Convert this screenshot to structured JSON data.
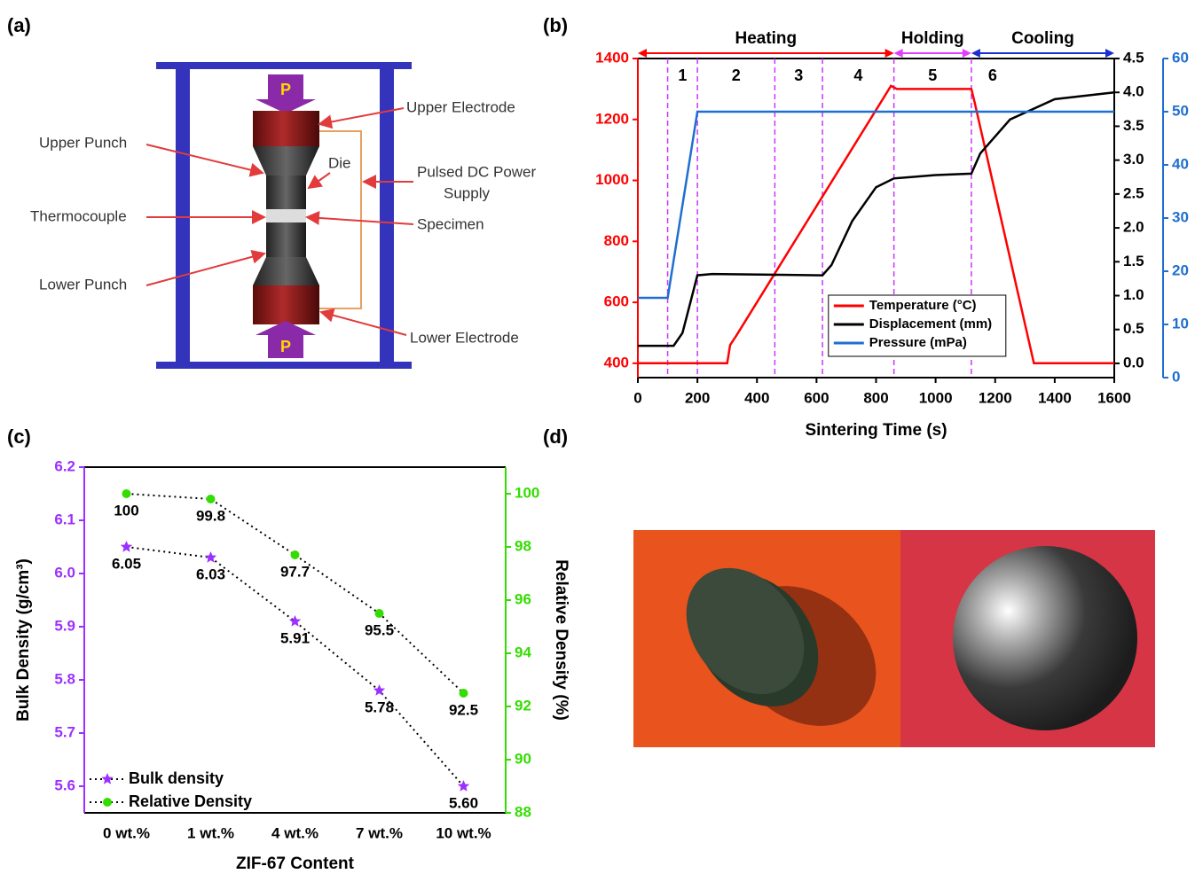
{
  "panel_labels": [
    "(a)",
    "(b)",
    "(c)",
    "(d)"
  ],
  "diagram": {
    "force": [
      "P",
      "P"
    ],
    "labels": {
      "upper_electrode": "Upper Electrode",
      "upper_punch": "Upper Punch",
      "die": "Die",
      "power_supply": [
        "Pulsed DC Power",
        "Supply"
      ],
      "thermocouple": "Thermocouple",
      "specimen": "Specimen",
      "lower_punch": "Lower Punch",
      "lower_electrode": "Lower Electrode"
    }
  },
  "chart_data": [
    {
      "type": "line",
      "xlabel": "Sintering Time (s)",
      "xlim": [
        0,
        1600
      ],
      "xticks": [
        0,
        200,
        400,
        600,
        800,
        1000,
        1200,
        1400,
        1600
      ],
      "ylim": [
        353,
        1400
      ],
      "yticks": [
        400,
        600,
        800,
        1000,
        1200,
        1400
      ],
      "y2lim": [
        -0.21,
        4.5
      ],
      "y2ticks": [
        {
          "value": 0,
          "label": "0.0"
        },
        0.5,
        {
          "value": 1,
          "label": "1.0"
        },
        1.5,
        {
          "value": 2,
          "label": "2.0"
        },
        2.5,
        {
          "value": 3,
          "label": "3.0"
        },
        3.5,
        {
          "value": 4,
          "label": "4.0"
        },
        4.5
      ],
      "y3lim": [
        0,
        60
      ],
      "y3ticks": [
        0,
        10,
        20,
        30,
        40,
        50,
        60
      ],
      "axis_colors": {
        "y": "#ff0000",
        "y2": "#000000",
        "y3": "#1f6fd0"
      },
      "legend": "lower center",
      "series": [
        {
          "name": "Temperature (°C)",
          "color": "#ff0000",
          "x": [
            0,
            300,
            310,
            330,
            850,
            870,
            1120,
            1130,
            1330,
            1600
          ],
          "values": [
            400,
            400,
            460,
            490,
            1310,
            1300,
            1300,
            1260,
            400,
            400
          ]
        },
        {
          "name": "Displacement (mm)",
          "color": "#000000",
          "axis": "y2",
          "x": [
            0,
            120,
            150,
            200,
            250,
            620,
            650,
            720,
            800,
            860,
            1000,
            1120,
            1150,
            1250,
            1400,
            1600
          ],
          "values": [
            0.26,
            0.26,
            0.45,
            1.3,
            1.32,
            1.3,
            1.45,
            2.1,
            2.6,
            2.73,
            2.78,
            2.8,
            3.1,
            3.6,
            3.9,
            4.0
          ]
        },
        {
          "name": "Pressure (mPa)",
          "color": "#1f6fd0",
          "axis": "y3",
          "x": [
            0,
            100,
            200,
            1600
          ],
          "values": [
            15,
            15,
            50,
            50
          ]
        }
      ],
      "phase_lines": [
        100,
        200,
        460,
        620,
        860,
        1120
      ],
      "phases": [
        "1",
        "2",
        "3",
        "4",
        "5",
        "6"
      ],
      "stages": [
        {
          "label": "Heating",
          "from": 0,
          "to": 860,
          "color": "#ff0000"
        },
        {
          "label": "Holding",
          "from": 860,
          "to": 1120,
          "color": "#e040fb"
        },
        {
          "label": "Cooling",
          "from": 1120,
          "to": 1600,
          "color": "#1a2fd0"
        }
      ]
    },
    {
      "type": "line",
      "xlabel": "ZIF-67 Content",
      "ylabel": "Bulk Density (g/cm³)",
      "y2label": "Relative Density (%)",
      "categories": [
        "0 wt.%",
        "1 wt.%",
        "4 wt.%",
        "7 wt.%",
        "10 wt.%"
      ],
      "ylim": [
        5.55,
        6.2
      ],
      "yticks": [
        5.6,
        5.7,
        5.8,
        5.9,
        {
          "value": 6,
          "label": "6.0"
        },
        6.1,
        6.2
      ],
      "y2lim": [
        88,
        101
      ],
      "y2ticks": [
        88,
        90,
        92,
        94,
        96,
        98,
        100
      ],
      "axis_colors": {
        "y": "#9b30ff",
        "y2": "#33dd00"
      },
      "legend": "lower left",
      "series": [
        {
          "name": "Bulk density",
          "color": "#9b30ff",
          "marker": "star",
          "values": [
            6.05,
            6.03,
            5.91,
            5.78,
            5.6
          ],
          "value_labels": [
            "6.05",
            "6.03",
            "5.91",
            "5.78",
            "5.60"
          ]
        },
        {
          "name": "Relative Density",
          "color": "#33dd00",
          "marker": "circle",
          "axis": "y2",
          "values": [
            100,
            99.8,
            97.7,
            95.5,
            92.5
          ],
          "value_labels": [
            "100",
            "99.8",
            "97.7",
            "95.5",
            "92.5"
          ]
        }
      ]
    }
  ]
}
